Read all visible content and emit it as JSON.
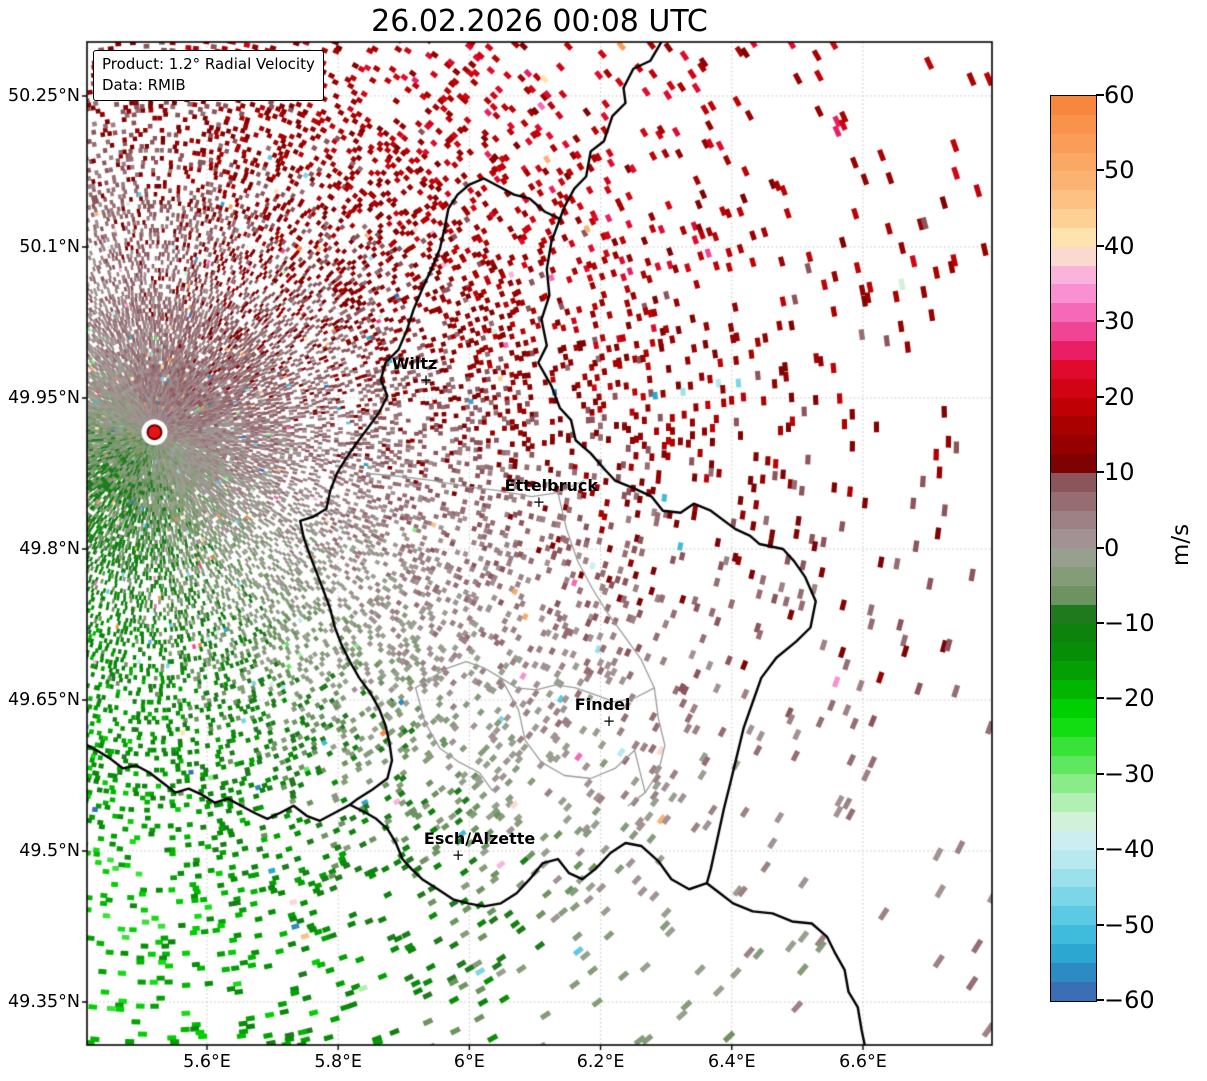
{
  "title": "26.02.2026 00:08 UTC",
  "annotation_box": {
    "product_line": "Product: 1.2° Radial Velocity",
    "data_line": "Data: RMIB"
  },
  "chart_data": {
    "type": "radar-ppi-velocity-map",
    "title": "26.02.2026 00:08 UTC",
    "product": "1.2° Radial Velocity",
    "data_source": "RMIB",
    "units": "m/s",
    "grid": true,
    "x_axis": {
      "tick_values": [
        5.6,
        5.8,
        6.0,
        6.2,
        6.4,
        6.6
      ],
      "tick_labels": [
        "5.6°E",
        "5.8°E",
        "6°E",
        "6.2°E",
        "6.4°E",
        "6.6°E"
      ],
      "range": [
        5.4171,
        6.7967
      ]
    },
    "y_axis": {
      "tick_values": [
        50.25,
        50.1,
        49.95,
        49.8,
        49.65,
        49.5,
        49.35
      ],
      "tick_labels": [
        "50.25°N",
        "50.1°N",
        "49.95°N",
        "49.8°N",
        "49.65°N",
        "49.5°N",
        "49.35°N"
      ],
      "range": [
        49.3073,
        50.3036
      ]
    },
    "colorbar": {
      "label": "m/s",
      "vmin": -60,
      "vmax": 60,
      "step": 2.5,
      "tick_values": [
        60,
        50,
        40,
        30,
        20,
        10,
        0,
        -10,
        -20,
        -30,
        -40,
        -50,
        -60
      ],
      "tick_labels": [
        "60",
        "50",
        "40",
        "30",
        "20",
        "10",
        "0",
        "−10",
        "−20",
        "−30",
        "−40",
        "−50",
        "−60"
      ],
      "colors_top_to_bottom": [
        "#f8873e",
        "#f9924b",
        "#fa9d58",
        "#fba865",
        "#fbb373",
        "#fcc183",
        "#fdd093",
        "#fee3ae",
        "#fcd9cf",
        "#fab4dc",
        "#f890d2",
        "#f569b8",
        "#f04494",
        "#ea1e64",
        "#e00a2e",
        "#d10413",
        "#bd0105",
        "#a90000",
        "#950000",
        "#7f0202",
        "#8b555b",
        "#956d72",
        "#9d8184",
        "#a29293",
        "#97a08e",
        "#859c79",
        "#6d9460",
        "#1e7a1c",
        "#0d830d",
        "#068e06",
        "#02a002",
        "#00b600",
        "#00cf00",
        "#12dc12",
        "#38e238",
        "#60e760",
        "#89ec89",
        "#b2efb2",
        "#d2f1db",
        "#cdeef0",
        "#b7e9ef",
        "#9ae1ec",
        "#7bd6e8",
        "#5ccae2",
        "#3fbbdb",
        "#2ba7d1",
        "#2e8ac2",
        "#3b6eb5"
      ]
    },
    "radar_site": {
      "lon": 5.52,
      "lat": 49.916,
      "dot_color": "#e41417",
      "dot_edge_color": "#6a0000"
    },
    "cities": [
      {
        "name": "Wiltz",
        "lon": 5.932,
        "lat": 49.968
      },
      {
        "name": "Ettelbruck",
        "lon": 6.104,
        "lat": 49.847
      },
      {
        "name": "Findel",
        "lon": 6.211,
        "lat": 49.629
      },
      {
        "name": "Esch/Alzette",
        "lon": 5.981,
        "lat": 49.496
      }
    ],
    "map_borders": {
      "national_color": "#000000",
      "regional_color": "#9c9c9c",
      "national": [
        [
          [
            6.293,
            50.304
          ],
          [
            6.276,
            50.285
          ],
          [
            6.25,
            50.277
          ],
          [
            6.235,
            50.258
          ],
          [
            6.238,
            50.243
          ],
          [
            6.218,
            50.23
          ],
          [
            6.205,
            50.205
          ],
          [
            6.185,
            50.195
          ],
          [
            6.178,
            50.17
          ],
          [
            6.16,
            50.158
          ],
          [
            6.145,
            50.14
          ],
          [
            6.138,
            50.128
          ],
          [
            6.125,
            50.105
          ],
          [
            6.118,
            50.078
          ],
          [
            6.122,
            50.052
          ],
          [
            6.11,
            50.028
          ],
          [
            6.118,
            50.002
          ],
          [
            6.105,
            49.985
          ],
          [
            6.125,
            49.962
          ],
          [
            6.138,
            49.94
          ],
          [
            6.155,
            49.928
          ],
          [
            6.162,
            49.908
          ],
          [
            6.185,
            49.895
          ],
          [
            6.205,
            49.88
          ],
          [
            6.222,
            49.868
          ],
          [
            6.252,
            49.86
          ],
          [
            6.278,
            49.852
          ],
          [
            6.295,
            49.838
          ],
          [
            6.322,
            49.836
          ],
          [
            6.342,
            49.845
          ],
          [
            6.368,
            49.838
          ],
          [
            6.405,
            49.82
          ],
          [
            6.428,
            49.813
          ],
          [
            6.442,
            49.805
          ],
          [
            6.478,
            49.8
          ],
          [
            6.495,
            49.788
          ],
          [
            6.512,
            49.772
          ],
          [
            6.528,
            49.748
          ],
          [
            6.52,
            49.722
          ],
          [
            6.498,
            49.708
          ],
          [
            6.468,
            49.692
          ],
          [
            6.445,
            49.672
          ],
          [
            6.432,
            49.648
          ],
          [
            6.418,
            49.622
          ],
          [
            6.408,
            49.595
          ],
          [
            6.398,
            49.568
          ],
          [
            6.388,
            49.542
          ],
          [
            6.378,
            49.512
          ],
          [
            6.368,
            49.482
          ],
          [
            6.362,
            49.468
          ],
          [
            6.382,
            49.458
          ],
          [
            6.402,
            49.448
          ],
          [
            6.432,
            49.44
          ],
          [
            6.462,
            49.438
          ],
          [
            6.492,
            49.43
          ],
          [
            6.522,
            49.428
          ],
          [
            6.545,
            49.415
          ],
          [
            6.558,
            49.398
          ],
          [
            6.572,
            49.382
          ],
          [
            6.578,
            49.36
          ],
          [
            6.592,
            49.345
          ],
          [
            6.598,
            49.322
          ],
          [
            6.605,
            49.3
          ]
        ],
        [
          [
            6.362,
            49.468
          ],
          [
            6.335,
            49.462
          ],
          [
            6.308,
            49.472
          ],
          [
            6.288,
            49.49
          ],
          [
            6.262,
            49.505
          ],
          [
            6.238,
            49.508
          ],
          [
            6.215,
            49.498
          ],
          [
            6.192,
            49.482
          ],
          [
            6.172,
            49.472
          ],
          [
            6.152,
            49.478
          ],
          [
            6.135,
            49.492
          ],
          [
            6.112,
            49.488
          ],
          [
            6.092,
            49.472
          ],
          [
            6.072,
            49.458
          ],
          [
            6.048,
            49.448
          ],
          [
            6.022,
            49.445
          ],
          [
            5.998,
            49.448
          ],
          [
            5.975,
            49.452
          ],
          [
            5.952,
            49.462
          ],
          [
            5.928,
            49.472
          ],
          [
            5.912,
            49.482
          ],
          [
            5.898,
            49.492
          ],
          [
            5.888,
            49.508
          ],
          [
            5.875,
            49.522
          ],
          [
            5.858,
            49.532
          ],
          [
            5.842,
            49.538
          ],
          [
            5.818,
            49.546
          ],
          [
            5.795,
            49.538
          ],
          [
            5.772,
            49.53
          ],
          [
            5.752,
            49.535
          ],
          [
            5.732,
            49.545
          ],
          [
            5.712,
            49.538
          ],
          [
            5.692,
            49.532
          ],
          [
            5.672,
            49.538
          ],
          [
            5.652,
            49.545
          ],
          [
            5.632,
            49.552
          ],
          [
            5.612,
            49.548
          ],
          [
            5.592,
            49.556
          ],
          [
            5.572,
            49.562
          ],
          [
            5.552,
            49.558
          ],
          [
            5.532,
            49.568
          ],
          [
            5.512,
            49.578
          ],
          [
            5.492,
            49.585
          ],
          [
            5.472,
            49.582
          ],
          [
            5.452,
            49.592
          ],
          [
            5.432,
            49.6
          ],
          [
            5.415,
            49.606
          ]
        ],
        [
          [
            6.138,
            50.128
          ],
          [
            6.115,
            50.135
          ],
          [
            6.092,
            50.148
          ],
          [
            6.068,
            50.152
          ],
          [
            6.045,
            50.16
          ],
          [
            6.022,
            50.168
          ],
          [
            6.0,
            50.162
          ],
          [
            5.982,
            50.152
          ],
          [
            5.968,
            50.138
          ],
          [
            5.962,
            50.118
          ],
          [
            5.955,
            50.098
          ],
          [
            5.942,
            50.078
          ],
          [
            5.928,
            50.058
          ],
          [
            5.915,
            50.038
          ],
          [
            5.905,
            50.018
          ],
          [
            5.892,
            49.998
          ],
          [
            5.872,
            49.985
          ],
          [
            5.865,
            49.968
          ],
          [
            5.875,
            49.952
          ],
          [
            5.862,
            49.935
          ],
          [
            5.845,
            49.92
          ],
          [
            5.828,
            49.905
          ],
          [
            5.812,
            49.89
          ],
          [
            5.798,
            49.875
          ],
          [
            5.788,
            49.858
          ],
          [
            5.782,
            49.84
          ],
          [
            5.762,
            49.832
          ],
          [
            5.742,
            49.828
          ],
          [
            5.748,
            49.81
          ],
          [
            5.758,
            49.792
          ],
          [
            5.768,
            49.775
          ],
          [
            5.778,
            49.758
          ],
          [
            5.788,
            49.74
          ],
          [
            5.795,
            49.722
          ],
          [
            5.805,
            49.705
          ],
          [
            5.818,
            49.688
          ],
          [
            5.832,
            49.672
          ],
          [
            5.848,
            49.658
          ],
          [
            5.862,
            49.642
          ],
          [
            5.872,
            49.625
          ],
          [
            5.878,
            49.608
          ],
          [
            5.882,
            49.59
          ],
          [
            5.875,
            49.572
          ],
          [
            5.85,
            49.56
          ],
          [
            5.83,
            49.552
          ],
          [
            5.818,
            49.546
          ]
        ]
      ],
      "regional": [
        [
          [
            5.845,
            49.875
          ],
          [
            5.895,
            49.872
          ],
          [
            5.945,
            49.868
          ],
          [
            5.995,
            49.862
          ],
          [
            6.045,
            49.858
          ],
          [
            6.095,
            49.852
          ],
          [
            6.135,
            49.856
          ],
          [
            6.175,
            49.868
          ]
        ],
        [
          [
            6.135,
            49.856
          ],
          [
            6.148,
            49.82
          ],
          [
            6.165,
            49.788
          ],
          [
            6.188,
            49.76
          ],
          [
            6.212,
            49.735
          ],
          [
            6.238,
            49.712
          ],
          [
            6.262,
            49.69
          ],
          [
            6.282,
            49.662
          ],
          [
            6.288,
            49.632
          ],
          [
            6.298,
            49.605
          ],
          [
            6.288,
            49.578
          ],
          [
            6.268,
            49.558
          ],
          [
            6.242,
            49.545
          ]
        ],
        [
          [
            6.282,
            49.662
          ],
          [
            6.252,
            49.652
          ],
          [
            6.222,
            49.648
          ],
          [
            6.192,
            49.655
          ],
          [
            6.162,
            49.662
          ],
          [
            6.132,
            49.665
          ],
          [
            6.102,
            49.66
          ],
          [
            6.072,
            49.662
          ],
          [
            6.048,
            49.672
          ],
          [
            6.022,
            49.682
          ],
          [
            5.995,
            49.688
          ],
          [
            5.968,
            49.682
          ],
          [
            5.942,
            49.672
          ],
          [
            5.918,
            49.662
          ]
        ],
        [
          [
            6.048,
            49.672
          ],
          [
            6.075,
            49.64
          ],
          [
            6.085,
            49.61
          ],
          [
            6.11,
            49.588
          ],
          [
            6.145,
            49.575
          ],
          [
            6.185,
            49.572
          ],
          [
            6.222,
            49.582
          ],
          [
            6.252,
            49.6
          ],
          [
            6.268,
            49.558
          ]
        ],
        [
          [
            5.918,
            49.662
          ],
          [
            5.932,
            49.628
          ],
          [
            5.955,
            49.602
          ],
          [
            5.985,
            49.588
          ],
          [
            6.015,
            49.578
          ],
          [
            6.035,
            49.56
          ]
        ]
      ]
    }
  },
  "colors": {
    "grid": "#c4c4c4",
    "axis_spine": "#000000",
    "background": "#ffffff"
  }
}
